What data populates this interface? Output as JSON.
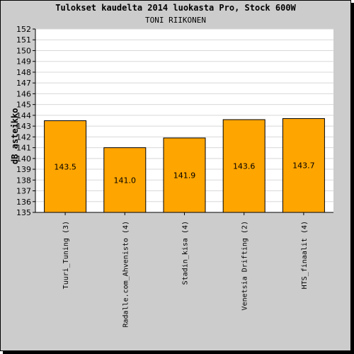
{
  "chart_data": {
    "type": "bar",
    "title": "Tulokset kaudelta 2014 luokasta Pro, Stock 600W",
    "subtitle": "TONI RIIKONEN",
    "xlabel": "",
    "ylabel": "dB asteikko",
    "ylim": [
      135,
      152
    ],
    "yticks": [
      135,
      136,
      137,
      138,
      139,
      140,
      141,
      142,
      143,
      144,
      145,
      146,
      147,
      148,
      149,
      150,
      151,
      152
    ],
    "categories": [
      "Tuuri_Tuning (3)",
      "Radalle.com_Ahvenisto (4)",
      "Stadin_kisa (4)",
      "Venetsia Drifting (2)",
      "HTS_finaalit (4)"
    ],
    "values": [
      143.5,
      141.0,
      141.9,
      143.6,
      143.7
    ],
    "value_labels": [
      "143.5",
      "141.0",
      "141.9",
      "143.6",
      "143.7"
    ],
    "grid": true,
    "legend": "none",
    "bar_color": "#ffa500"
  }
}
